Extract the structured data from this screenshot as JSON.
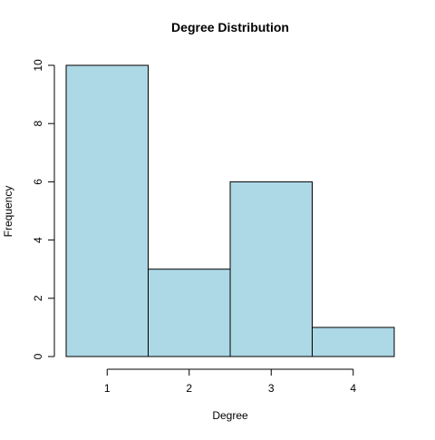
{
  "chart_data": {
    "type": "bar",
    "title": "Degree Distribution",
    "xlabel": "Degree",
    "ylabel": "Frequency",
    "categories": [
      "1",
      "2",
      "3",
      "4"
    ],
    "x": [
      1,
      2,
      3,
      4
    ],
    "values": [
      10,
      3,
      6,
      1
    ],
    "ylim": [
      0,
      10
    ],
    "xlim": [
      0.5,
      4.5
    ],
    "yticks": [
      "0",
      "2",
      "4",
      "6",
      "8",
      "10"
    ],
    "xticks": [
      "1",
      "2",
      "3",
      "4"
    ],
    "grid": false,
    "colors": {
      "bar_fill": "#add8e6",
      "bar_stroke": "#000000",
      "axis": "#000000",
      "background": "#ffffff"
    }
  }
}
